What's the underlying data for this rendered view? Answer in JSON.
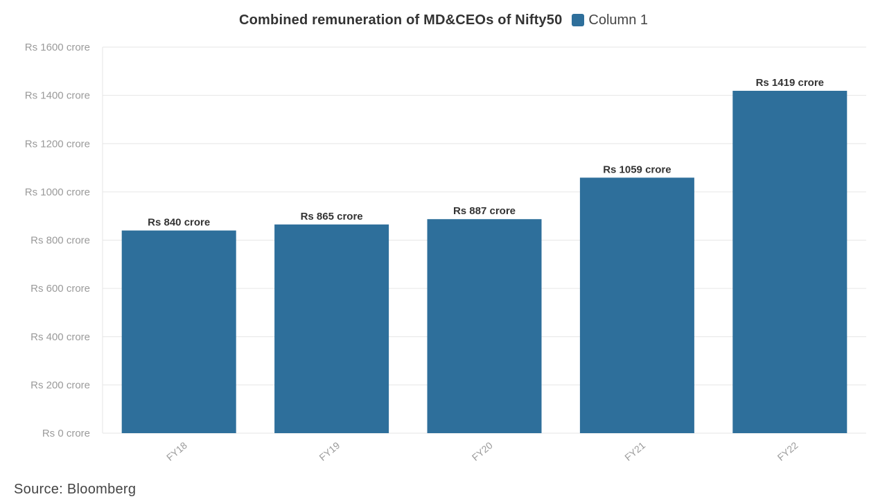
{
  "chart_data": {
    "type": "bar",
    "title": "Combined remuneration of MD&CEOs of Nifty50",
    "categories": [
      "FY18",
      "FY19",
      "FY20",
      "FY21",
      "FY22"
    ],
    "series": [
      {
        "name": "Column 1",
        "values": [
          840,
          865,
          887,
          1059,
          1419
        ],
        "data_labels": [
          "Rs 840 crore",
          "Rs 865 crore",
          "Rs 887 crore",
          "Rs 1059 crore",
          "Rs 1419 crore"
        ],
        "color": "#2e6f9b"
      }
    ],
    "y_ticks": [
      0,
      200,
      400,
      600,
      800,
      1000,
      1200,
      1400,
      1600
    ],
    "y_tick_labels": [
      "Rs 0 crore",
      "Rs 200 crore",
      "Rs 400 crore",
      "Rs 600 crore",
      "Rs 800 crore",
      "Rs 1000 crore",
      "Rs 1200 crore",
      "Rs 1400 crore",
      "Rs 1600 crore"
    ],
    "ylim": [
      0,
      1600
    ],
    "grid": true,
    "legend_position": "top"
  },
  "source": "Source: Bloomberg",
  "colors": {
    "bar": "#2e6f9b",
    "grid": "#e6e6e6",
    "tick_label": "#9a9a9a",
    "data_label": "#333333"
  }
}
